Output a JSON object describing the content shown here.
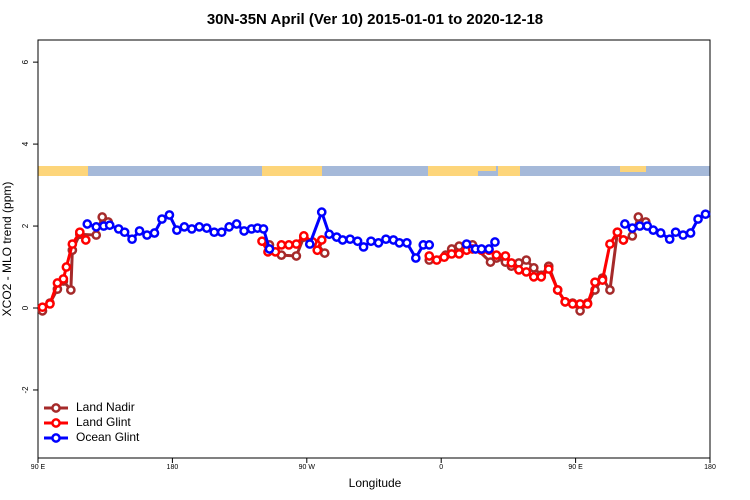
{
  "chart_data": {
    "type": "line",
    "title": "30N-35N April (Ver 10)   2015-01-01 to 2020-12-18",
    "x_label": "Longitude",
    "y_label": "XCO2 - MLO trend (ppm)",
    "xlim": [
      90,
      540
    ],
    "ylim": [
      -3.66,
      6.54
    ],
    "xticks": [
      {
        "value": 90,
        "label": "90 E"
      },
      180,
      {
        "value": 270,
        "label": "90 W"
      },
      {
        "value": 360,
        "label": "0"
      },
      {
        "value": 450,
        "label": "90 E"
      },
      {
        "value": 540,
        "label": "180"
      }
    ],
    "yticks": [
      -2,
      0,
      2,
      4,
      6
    ],
    "legend": "bottom-left",
    "series": [
      {
        "name": "Land Nadir",
        "color": "#a52a2a",
        "x": [
          93,
          98,
          103,
          107,
          112,
          113,
          118,
          129,
          133,
          137,
          null,
          245,
          253,
          263,
          268,
          277,
          282,
          null,
          352,
          363,
          367,
          372,
          377,
          381,
          393,
          397,
          403,
          407,
          412,
          417,
          422,
          427,
          432,
          438,
          443,
          448,
          453,
          458,
          463,
          468,
          473,
          478,
          482,
          488,
          492,
          497
        ],
        "values": [
          -0.07,
          0.12,
          0.46,
          0.66,
          0.44,
          1.41,
          1.8,
          1.78,
          2.22,
          2.1,
          null,
          1.54,
          1.29,
          1.27,
          1.73,
          1.56,
          1.34,
          null,
          1.17,
          1.29,
          1.44,
          1.51,
          1.54,
          1.54,
          1.12,
          1.22,
          1.12,
          1.02,
          1.1,
          1.17,
          0.98,
          0.8,
          1.02,
          0.44,
          0.15,
          0.12,
          -0.07,
          0.12,
          0.44,
          0.73,
          0.44,
          1.85,
          1.66,
          1.76,
          2.22,
          2.1
        ]
      },
      {
        "name": "Land Glint",
        "color": "#ff0000",
        "x": [
          93,
          98,
          103,
          107,
          109,
          113,
          118,
          122,
          null,
          240,
          244,
          249,
          253,
          258,
          263,
          268,
          274,
          277,
          280,
          null,
          352,
          357,
          362,
          367,
          372,
          377,
          381,
          387,
          392,
          397,
          403,
          407,
          412,
          417,
          422,
          427,
          432,
          438,
          443,
          448,
          453,
          458,
          463,
          468,
          473,
          478,
          482
        ],
        "values": [
          0.02,
          0.1,
          0.61,
          0.71,
          1.0,
          1.56,
          1.85,
          1.66,
          null,
          1.63,
          1.37,
          1.37,
          1.54,
          1.54,
          1.56,
          1.76,
          1.61,
          1.41,
          1.66,
          null,
          1.27,
          1.17,
          1.24,
          1.32,
          1.32,
          1.41,
          1.44,
          1.41,
          1.41,
          1.29,
          1.27,
          1.1,
          0.93,
          0.88,
          0.76,
          0.76,
          0.95,
          0.44,
          0.15,
          0.1,
          0.1,
          0.1,
          0.63,
          0.68,
          1.56,
          1.85,
          1.66
        ]
      },
      {
        "name": "Ocean Glint",
        "color": "#0000ff",
        "x": [
          123,
          129,
          134,
          138,
          144,
          148,
          153,
          158,
          163,
          168,
          173,
          178,
          183,
          188,
          193,
          198,
          203,
          208,
          213,
          218,
          223,
          228,
          233,
          237,
          241,
          245,
          null,
          272,
          280,
          285,
          290,
          294,
          299,
          304,
          308,
          313,
          318,
          323,
          328,
          332,
          337,
          343,
          348,
          352,
          null,
          377,
          383,
          387,
          392,
          396,
          null,
          483,
          488,
          493,
          498,
          502,
          507,
          513,
          517,
          522,
          527,
          532,
          537
        ],
        "values": [
          2.05,
          1.98,
          2.0,
          2.02,
          1.93,
          1.85,
          1.68,
          1.88,
          1.78,
          1.83,
          2.17,
          2.27,
          1.9,
          1.98,
          1.93,
          1.98,
          1.95,
          1.85,
          1.85,
          1.98,
          2.05,
          1.88,
          1.93,
          1.95,
          1.93,
          1.44,
          null,
          1.56,
          2.34,
          1.8,
          1.73,
          1.66,
          1.68,
          1.63,
          1.49,
          1.63,
          1.59,
          1.68,
          1.66,
          1.59,
          1.59,
          1.22,
          1.54,
          1.54,
          null,
          1.56,
          1.44,
          1.44,
          1.44,
          1.61,
          null,
          2.05,
          1.95,
          2.0,
          2.0,
          1.9,
          1.83,
          1.68,
          1.85,
          1.78,
          1.83,
          2.17,
          2.29
        ]
      }
    ]
  }
}
